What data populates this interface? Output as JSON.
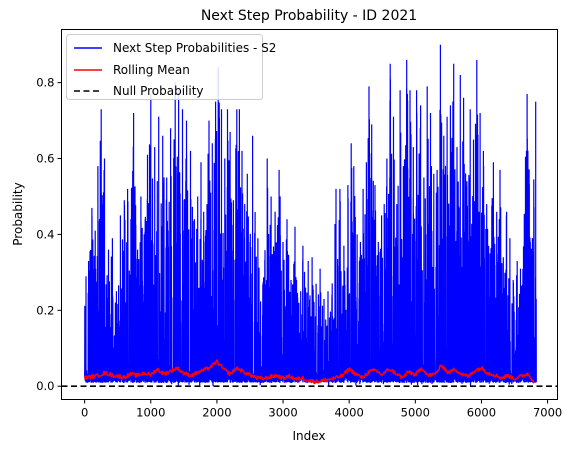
{
  "chart_data": {
    "type": "line",
    "title": "Next Step Probability - ID 2021",
    "xlabel": "Index",
    "ylabel": "Probability",
    "xlim": [
      -350,
      7150
    ],
    "ylim": [
      -0.035,
      0.94
    ],
    "xticks": [
      0,
      1000,
      2000,
      3000,
      4000,
      5000,
      6000,
      7000
    ],
    "yticks": [
      0.0,
      0.2,
      0.4,
      0.6,
      0.8
    ],
    "ytick_labels": [
      "0.0",
      "0.2",
      "0.4",
      "0.6",
      "0.8"
    ],
    "grid": false,
    "legend": {
      "placement": "top-left",
      "entries": [
        "Next Step Probabilities - S2",
        "Rolling Mean",
        "Null Probability"
      ]
    },
    "colors": {
      "series_probabilities": "#0000ff",
      "rolling_mean": "#ff0000",
      "null_line": "#000000"
    },
    "series": [
      {
        "name": "Next Step Probabilities - S2",
        "x_range": [
          0,
          6830
        ],
        "baseline": 0.01,
        "peaks": [
          [
            20,
            0.29
          ],
          [
            60,
            0.33
          ],
          [
            110,
            0.47
          ],
          [
            160,
            0.41
          ],
          [
            200,
            0.58
          ],
          [
            250,
            0.73
          ],
          [
            300,
            0.6
          ],
          [
            360,
            0.36
          ],
          [
            420,
            0.39
          ],
          [
            480,
            0.25
          ],
          [
            540,
            0.45
          ],
          [
            600,
            0.49
          ],
          [
            650,
            0.52
          ],
          [
            700,
            0.44
          ],
          [
            740,
            0.72
          ],
          [
            800,
            0.36
          ],
          [
            850,
            0.5
          ],
          [
            900,
            0.4
          ],
          [
            950,
            0.61
          ],
          [
            1000,
            0.77
          ],
          [
            1060,
            0.63
          ],
          [
            1120,
            0.71
          ],
          [
            1180,
            0.66
          ],
          [
            1240,
            0.55
          ],
          [
            1300,
            0.68
          ],
          [
            1370,
            0.8
          ],
          [
            1420,
            0.78
          ],
          [
            1480,
            0.73
          ],
          [
            1540,
            0.7
          ],
          [
            1600,
            0.62
          ],
          [
            1660,
            0.44
          ],
          [
            1710,
            0.5
          ],
          [
            1760,
            0.59
          ],
          [
            1800,
            0.46
          ],
          [
            1850,
            0.48
          ],
          [
            1880,
            0.7
          ],
          [
            1930,
            0.64
          ],
          [
            1980,
            0.75
          ],
          [
            2020,
            0.84
          ],
          [
            2070,
            0.73
          ],
          [
            2120,
            0.6
          ],
          [
            2160,
            0.73
          ],
          [
            2200,
            0.67
          ],
          [
            2250,
            0.49
          ],
          [
            2300,
            0.73
          ],
          [
            2340,
            0.73
          ],
          [
            2380,
            0.62
          ],
          [
            2420,
            0.48
          ],
          [
            2460,
            0.56
          ],
          [
            2500,
            0.38
          ],
          [
            2540,
            0.66
          ],
          [
            2580,
            0.34
          ],
          [
            2620,
            0.39
          ],
          [
            2700,
            0.18
          ],
          [
            2760,
            0.6
          ],
          [
            2820,
            0.5
          ],
          [
            2880,
            0.46
          ],
          [
            2940,
            0.57
          ],
          [
            3000,
            0.38
          ],
          [
            3060,
            0.44
          ],
          [
            3120,
            0.28
          ],
          [
            3180,
            0.42
          ],
          [
            3240,
            0.22
          ],
          [
            3300,
            0.37
          ],
          [
            3340,
            0.26
          ],
          [
            3380,
            0.33
          ],
          [
            3440,
            0.34
          ],
          [
            3500,
            0.27
          ],
          [
            3560,
            0.31
          ],
          [
            3620,
            0.23
          ],
          [
            3680,
            0.25
          ],
          [
            3740,
            0.24
          ],
          [
            3800,
            0.52
          ],
          [
            3860,
            0.52
          ],
          [
            3920,
            0.37
          ],
          [
            3980,
            0.53
          ],
          [
            4030,
            0.64
          ],
          [
            4070,
            0.58
          ],
          [
            4120,
            0.4
          ],
          [
            4170,
            0.38
          ],
          [
            4210,
            0.52
          ],
          [
            4260,
            0.59
          ],
          [
            4300,
            0.79
          ],
          [
            4340,
            0.69
          ],
          [
            4390,
            0.53
          ],
          [
            4440,
            0.38
          ],
          [
            4490,
            0.45
          ],
          [
            4530,
            0.48
          ],
          [
            4570,
            0.6
          ],
          [
            4620,
            0.85
          ],
          [
            4670,
            0.71
          ],
          [
            4720,
            0.48
          ],
          [
            4770,
            0.78
          ],
          [
            4820,
            0.58
          ],
          [
            4870,
            0.86
          ],
          [
            4920,
            0.78
          ],
          [
            4970,
            0.63
          ],
          [
            5020,
            0.78
          ],
          [
            5080,
            0.74
          ],
          [
            5130,
            0.55
          ],
          [
            5180,
            0.79
          ],
          [
            5230,
            0.72
          ],
          [
            5280,
            0.56
          ],
          [
            5330,
            0.57
          ],
          [
            5380,
            0.9
          ],
          [
            5430,
            0.66
          ],
          [
            5480,
            0.71
          ],
          [
            5530,
            0.74
          ],
          [
            5580,
            0.85
          ],
          [
            5630,
            0.63
          ],
          [
            5680,
            0.82
          ],
          [
            5730,
            0.76
          ],
          [
            5780,
            0.54
          ],
          [
            5830,
            0.73
          ],
          [
            5880,
            0.65
          ],
          [
            5930,
            0.86
          ],
          [
            5980,
            0.72
          ],
          [
            6030,
            0.62
          ],
          [
            6080,
            0.48
          ],
          [
            6130,
            0.35
          ],
          [
            6180,
            0.59
          ],
          [
            6230,
            0.46
          ],
          [
            6280,
            0.57
          ],
          [
            6330,
            0.34
          ],
          [
            6380,
            0.46
          ],
          [
            6430,
            0.39
          ],
          [
            6480,
            0.28
          ],
          [
            6540,
            0.33
          ],
          [
            6590,
            0.31
          ],
          [
            6640,
            0.26
          ],
          [
            6690,
            0.77
          ],
          [
            6740,
            0.34
          ],
          [
            6790,
            0.39
          ],
          [
            6820,
            0.75
          ]
        ]
      },
      {
        "name": "Rolling Mean",
        "x": [
          0,
          100,
          200,
          300,
          400,
          500,
          600,
          700,
          800,
          900,
          1000,
          1100,
          1200,
          1300,
          1400,
          1500,
          1600,
          1700,
          1800,
          1900,
          2000,
          2100,
          2200,
          2300,
          2400,
          2500,
          2600,
          2700,
          2800,
          2900,
          3000,
          3100,
          3200,
          3300,
          3400,
          3500,
          3600,
          3700,
          3800,
          3900,
          4000,
          4100,
          4200,
          4300,
          4400,
          4500,
          4600,
          4700,
          4800,
          4900,
          5000,
          5100,
          5200,
          5300,
          5400,
          5500,
          5600,
          5700,
          5800,
          5900,
          6000,
          6100,
          6200,
          6300,
          6400,
          6500,
          6600,
          6700,
          6800
        ],
        "values": [
          0.022,
          0.025,
          0.028,
          0.035,
          0.03,
          0.026,
          0.024,
          0.032,
          0.028,
          0.035,
          0.03,
          0.045,
          0.032,
          0.04,
          0.048,
          0.034,
          0.028,
          0.035,
          0.042,
          0.05,
          0.065,
          0.045,
          0.032,
          0.048,
          0.038,
          0.03,
          0.022,
          0.02,
          0.024,
          0.028,
          0.021,
          0.026,
          0.018,
          0.022,
          0.014,
          0.012,
          0.015,
          0.018,
          0.022,
          0.028,
          0.045,
          0.032,
          0.022,
          0.038,
          0.042,
          0.03,
          0.045,
          0.035,
          0.022,
          0.038,
          0.03,
          0.048,
          0.028,
          0.032,
          0.055,
          0.035,
          0.045,
          0.032,
          0.025,
          0.042,
          0.048,
          0.035,
          0.03,
          0.022,
          0.028,
          0.02,
          0.026,
          0.033,
          0.012
        ]
      },
      {
        "name": "Null Probability",
        "y": 0.0
      }
    ]
  }
}
